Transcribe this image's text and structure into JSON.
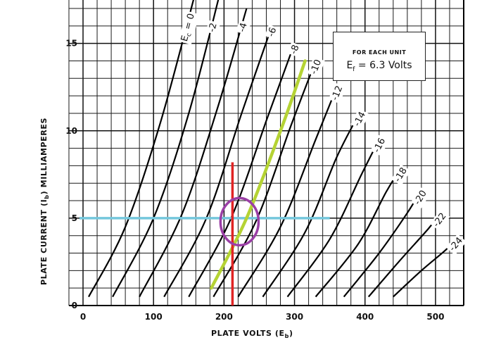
{
  "chart_data": {
    "type": "line",
    "title": "",
    "xlabel": "PLATE VOLTS (E",
    "xlabel_sub": "b",
    "xlabel_close": ")",
    "ylabel": "PLATE CURRENT (I",
    "ylabel_sub": "b",
    "ylabel_close": ") MILLIAMPERES",
    "xlim": [
      0,
      540
    ],
    "ylim": [
      0,
      17
    ],
    "x_ticks": [
      0,
      100,
      200,
      300,
      400,
      500
    ],
    "y_ticks": [
      0,
      5,
      10,
      15
    ],
    "grid": true,
    "note": {
      "line1": "FOR EACH UNIT",
      "line2": "E",
      "line2_sub": "f",
      "line2_rest": " = 6.3 Volts"
    },
    "series": [
      {
        "name": "Ec = 0",
        "label": "E",
        "label_sub": "c",
        "label_rest": " = 0",
        "x": [
          8,
          60,
          110,
          160
        ],
        "y": [
          0.5,
          4.5,
          10.5,
          18
        ]
      },
      {
        "name": "-2",
        "label": "-2",
        "x": [
          42,
          100,
          150,
          195
        ],
        "y": [
          0.5,
          5.0,
          11.0,
          18
        ]
      },
      {
        "name": "-4",
        "label": "-4",
        "x": [
          80,
          140,
          190,
          232
        ],
        "y": [
          0.5,
          5.2,
          11.2,
          17
        ]
      },
      {
        "name": "-6",
        "label": "-6",
        "x": [
          115,
          175,
          225,
          268
        ],
        "y": [
          0.5,
          5.0,
          11.0,
          16
        ]
      },
      {
        "name": "-8",
        "label": "-8",
        "x": [
          150,
          210,
          262,
          300
        ],
        "y": [
          0.5,
          5.0,
          10.8,
          15
        ]
      },
      {
        "name": "-10",
        "label": "-10",
        "x": [
          185,
          245,
          295,
          330
        ],
        "y": [
          0.5,
          4.8,
          10.3,
          14
        ]
      },
      {
        "name": "-12",
        "label": "-12",
        "x": [
          220,
          280,
          330,
          360
        ],
        "y": [
          0.5,
          4.5,
          9.5,
          12.5
        ]
      },
      {
        "name": "-14",
        "label": "-14",
        "x": [
          255,
          315,
          360,
          392
        ],
        "y": [
          0.5,
          4.2,
          8.5,
          11
        ]
      },
      {
        "name": "-16",
        "label": "-16",
        "x": [
          290,
          350,
          395,
          420
        ],
        "y": [
          0.5,
          3.8,
          7.5,
          9.5
        ]
      },
      {
        "name": "-18",
        "label": "-18",
        "x": [
          330,
          390,
          430,
          450
        ],
        "y": [
          0.5,
          3.5,
          6.5,
          7.8
        ]
      },
      {
        "name": "-20",
        "label": "-20",
        "x": [
          370,
          420,
          460,
          478
        ],
        "y": [
          0.5,
          3.0,
          5.3,
          6.5
        ]
      },
      {
        "name": "-22",
        "label": "-22",
        "x": [
          405,
          450,
          490,
          505
        ],
        "y": [
          0.5,
          2.6,
          4.4,
          5.2
        ]
      },
      {
        "name": "-24",
        "label": "-24",
        "x": [
          440,
          480,
          515,
          528
        ],
        "y": [
          0.5,
          2.0,
          3.2,
          3.8
        ]
      }
    ],
    "overlays": {
      "load_line": {
        "color": "#b5d334",
        "x": [
          182,
          232,
          282,
          315
        ],
        "y": [
          1.0,
          5.0,
          10.2,
          14.0
        ]
      },
      "vertical_marker": {
        "color": "#e02424",
        "x": 212,
        "y": [
          0,
          8.2
        ]
      },
      "horizontal_marker": {
        "color": "#74c7dc",
        "y": 5.0,
        "x": [
          -5,
          350
        ]
      },
      "operating_point_circle": {
        "color": "#9b3fa6",
        "x": 222,
        "y": 4.8,
        "radius_x": 27,
        "radius_y": 1.35
      }
    }
  },
  "colors": {
    "grid": "#1a1a1a",
    "curves": "#000000",
    "load_line": "#b5d334",
    "vertical_marker": "#e02424",
    "horizontal_marker": "#74c7dc",
    "circle": "#9b3fa6"
  }
}
